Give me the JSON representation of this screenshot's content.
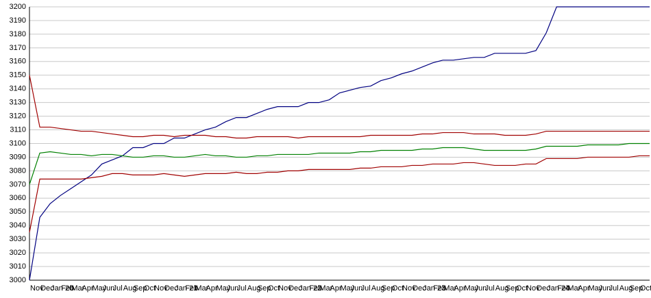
{
  "chart_data": {
    "type": "line",
    "categories": [
      "Nov",
      "Dec",
      "Jan 20",
      "Feb",
      "Mar",
      "Apr",
      "May",
      "Jun",
      "Jul",
      "Aug",
      "Sep",
      "Oct",
      "Nov",
      "Dec",
      "Jan 21",
      "Feb",
      "Mar",
      "Apr",
      "May",
      "Jun",
      "Jul",
      "Aug",
      "Sep",
      "Oct",
      "Nov",
      "Dec",
      "Jan 22",
      "Feb",
      "Mar",
      "Apr",
      "May",
      "Jun",
      "Jul",
      "Aug",
      "Sep",
      "Oct",
      "Nov",
      "Dec",
      "Jan 23",
      "Feb",
      "Mar",
      "Apr",
      "May",
      "Jun",
      "Jul",
      "Aug",
      "Sep",
      "Oct",
      "Nov",
      "Dec",
      "Jan 24",
      "Feb",
      "Mar",
      "Apr",
      "May",
      "Jun",
      "Jul",
      "Aug",
      "Sep",
      "Oct",
      "Nov"
    ],
    "series": [
      {
        "color": "#000080",
        "values": [
          3000,
          3046,
          3056,
          3062,
          3067,
          3072,
          3077,
          3085,
          3088,
          3091,
          3097,
          3097,
          3100,
          3100,
          3104,
          3104,
          3107,
          3110,
          3112,
          3116,
          3119,
          3119,
          3122,
          3125,
          3127,
          3127,
          3127,
          3130,
          3130,
          3132,
          3137,
          3139,
          3141,
          3142,
          3146,
          3148,
          3151,
          3153,
          3156,
          3159,
          3161,
          3161,
          3162,
          3163,
          3163,
          3166,
          3166,
          3166,
          3166,
          3168,
          3181,
          3200,
          3200,
          3200,
          3200,
          3200,
          3200,
          3200,
          3200,
          3200,
          3200
        ]
      },
      {
        "color": "#a00000",
        "values": [
          3150,
          3112,
          3112,
          3111,
          3110,
          3109,
          3109,
          3108,
          3107,
          3106,
          3105,
          3105,
          3106,
          3106,
          3105,
          3106,
          3106,
          3106,
          3105,
          3105,
          3104,
          3104,
          3105,
          3105,
          3105,
          3105,
          3104,
          3105,
          3105,
          3105,
          3105,
          3105,
          3105,
          3106,
          3106,
          3106,
          3106,
          3106,
          3107,
          3107,
          3108,
          3108,
          3108,
          3107,
          3107,
          3107,
          3106,
          3106,
          3106,
          3107,
          3109,
          3109,
          3109,
          3109,
          3109,
          3109,
          3109,
          3109,
          3109,
          3109,
          3109
        ]
      },
      {
        "color": "#008000",
        "values": [
          3070,
          3093,
          3094,
          3093,
          3092,
          3092,
          3091,
          3092,
          3092,
          3091,
          3090,
          3090,
          3091,
          3091,
          3090,
          3090,
          3091,
          3092,
          3091,
          3091,
          3090,
          3090,
          3091,
          3091,
          3092,
          3092,
          3092,
          3092,
          3093,
          3093,
          3093,
          3093,
          3094,
          3094,
          3095,
          3095,
          3095,
          3095,
          3096,
          3096,
          3097,
          3097,
          3097,
          3096,
          3095,
          3095,
          3095,
          3095,
          3095,
          3096,
          3098,
          3098,
          3098,
          3098,
          3099,
          3099,
          3099,
          3099,
          3100,
          3100,
          3100
        ]
      },
      {
        "color": "#a00000",
        "values": [
          3035,
          3074,
          3074,
          3074,
          3074,
          3074,
          3075,
          3076,
          3078,
          3078,
          3077,
          3077,
          3077,
          3078,
          3077,
          3076,
          3077,
          3078,
          3078,
          3078,
          3079,
          3078,
          3078,
          3079,
          3079,
          3080,
          3080,
          3081,
          3081,
          3081,
          3081,
          3081,
          3082,
          3082,
          3083,
          3083,
          3083,
          3084,
          3084,
          3085,
          3085,
          3085,
          3086,
          3086,
          3085,
          3084,
          3084,
          3084,
          3085,
          3085,
          3089,
          3089,
          3089,
          3089,
          3090,
          3090,
          3090,
          3090,
          3090,
          3091,
          3091
        ]
      }
    ],
    "ylim": [
      3000,
      3200
    ],
    "yticks": [
      3000,
      3010,
      3020,
      3030,
      3040,
      3050,
      3060,
      3070,
      3080,
      3090,
      3100,
      3110,
      3120,
      3130,
      3140,
      3150,
      3160,
      3170,
      3180,
      3190,
      3200
    ],
    "grid": true
  }
}
